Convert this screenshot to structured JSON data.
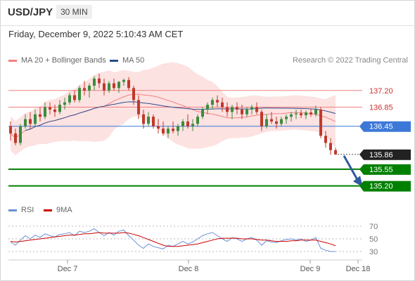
{
  "header": {
    "symbol": "USD/JPY",
    "timeframe": "30 MIN"
  },
  "datetime": "Friday, December 9, 2022 5:10:43 AM CET",
  "legend": {
    "ma20": "MA 20 + Bollinger Bands",
    "ma50": "MA 50",
    "copyright": "Research © 2022 Trading Central"
  },
  "rsi_legend": {
    "rsi": "RSI",
    "ma": "9MA"
  },
  "colors": {
    "ma20": "#f08080",
    "ma50": "#2b4c8c",
    "bollinger_fill": "#fde2e2",
    "candle_up": "#3c8c3c",
    "candle_down": "#c0392b",
    "resistance": "#f08080",
    "pivot": "#3c78d8",
    "support": "#008000",
    "last_price": "#222222",
    "arrow": "#2f5a9e",
    "rsi": "#6a8fd6",
    "rsi_ma": "#cc0000"
  },
  "chart_data": [
    {
      "type": "candlestick",
      "title": "USD/JPY",
      "timeframe": "30 MIN",
      "x_ticks": [
        "Dec 7",
        "Dec 8",
        "Dec 9",
        "Dec 18"
      ],
      "ylim": [
        134.9,
        137.55
      ],
      "series": [
        {
          "name": "MA 20 + Bollinger Bands"
        },
        {
          "name": "MA 50"
        }
      ],
      "ohlc": [
        [
          136.45,
          136.55,
          136.15,
          136.3
        ],
        [
          136.3,
          136.4,
          136.05,
          136.1
        ],
        [
          136.1,
          136.5,
          136.05,
          136.45
        ],
        [
          136.45,
          136.7,
          136.4,
          136.6
        ],
        [
          136.6,
          136.75,
          136.4,
          136.5
        ],
        [
          136.5,
          136.8,
          136.45,
          136.7
        ],
        [
          136.7,
          136.85,
          136.55,
          136.65
        ],
        [
          136.65,
          136.95,
          136.6,
          136.85
        ],
        [
          136.85,
          136.95,
          136.7,
          136.8
        ],
        [
          136.8,
          136.9,
          136.65,
          136.75
        ],
        [
          136.75,
          137.0,
          136.7,
          136.9
        ],
        [
          136.9,
          137.05,
          136.8,
          136.95
        ],
        [
          136.95,
          137.15,
          136.9,
          137.1
        ],
        [
          137.1,
          137.2,
          136.95,
          137.0
        ],
        [
          137.0,
          137.3,
          136.95,
          137.25
        ],
        [
          137.25,
          137.4,
          137.1,
          137.2
        ],
        [
          137.2,
          137.35,
          137.05,
          137.3
        ],
        [
          137.3,
          137.5,
          137.2,
          137.45
        ],
        [
          137.45,
          137.55,
          137.25,
          137.35
        ],
        [
          137.35,
          137.45,
          137.1,
          137.2
        ],
        [
          137.2,
          137.4,
          137.15,
          137.35
        ],
        [
          137.35,
          137.45,
          137.2,
          137.25
        ],
        [
          137.25,
          137.4,
          137.15,
          137.38
        ],
        [
          137.38,
          137.45,
          137.3,
          137.42
        ],
        [
          137.42,
          137.48,
          137.2,
          137.25
        ],
        [
          137.25,
          137.3,
          136.9,
          137.0
        ],
        [
          137.0,
          137.1,
          136.6,
          136.7
        ],
        [
          136.7,
          136.8,
          136.4,
          136.5
        ],
        [
          136.5,
          136.75,
          136.45,
          136.65
        ],
        [
          136.65,
          136.7,
          136.4,
          136.45
        ],
        [
          136.45,
          136.6,
          136.3,
          136.4
        ],
        [
          136.4,
          136.55,
          136.25,
          136.3
        ],
        [
          136.3,
          136.45,
          136.2,
          136.4
        ],
        [
          136.4,
          136.55,
          136.3,
          136.35
        ],
        [
          136.35,
          136.5,
          136.25,
          136.45
        ],
        [
          136.45,
          136.6,
          136.35,
          136.55
        ],
        [
          136.55,
          136.7,
          136.4,
          136.45
        ],
        [
          136.45,
          136.6,
          136.35,
          136.5
        ],
        [
          136.5,
          136.7,
          136.45,
          136.65
        ],
        [
          136.65,
          136.85,
          136.6,
          136.8
        ],
        [
          136.8,
          136.95,
          136.7,
          136.9
        ],
        [
          136.9,
          137.05,
          136.8,
          137.0
        ],
        [
          137.0,
          137.1,
          136.85,
          136.95
        ],
        [
          136.95,
          137.05,
          136.75,
          136.85
        ],
        [
          136.85,
          136.95,
          136.65,
          136.75
        ],
        [
          136.75,
          136.9,
          136.6,
          136.85
        ],
        [
          136.85,
          136.95,
          136.7,
          136.8
        ],
        [
          136.8,
          136.9,
          136.6,
          136.7
        ],
        [
          136.7,
          136.85,
          136.65,
          136.8
        ],
        [
          136.8,
          136.9,
          136.7,
          136.85
        ],
        [
          136.85,
          136.95,
          136.7,
          136.75
        ],
        [
          136.75,
          136.8,
          136.35,
          136.45
        ],
        [
          136.45,
          136.7,
          136.4,
          136.6
        ],
        [
          136.6,
          136.75,
          136.5,
          136.55
        ],
        [
          136.55,
          136.65,
          136.4,
          136.5
        ],
        [
          136.5,
          136.65,
          136.45,
          136.6
        ],
        [
          136.6,
          136.7,
          136.5,
          136.65
        ],
        [
          136.65,
          136.75,
          136.55,
          136.7
        ],
        [
          136.7,
          136.8,
          136.6,
          136.72
        ],
        [
          136.72,
          136.8,
          136.62,
          136.68
        ],
        [
          136.68,
          136.78,
          136.6,
          136.74
        ],
        [
          136.74,
          136.82,
          136.65,
          136.7
        ],
        [
          136.7,
          136.88,
          136.65,
          136.8
        ],
        [
          136.8,
          136.85,
          136.2,
          136.25
        ],
        [
          136.25,
          136.35,
          136.0,
          136.1
        ],
        [
          136.1,
          136.2,
          135.85,
          135.95
        ],
        [
          135.95,
          136.0,
          135.85,
          135.86
        ]
      ],
      "levels": [
        {
          "label": "137.20",
          "value": 137.2,
          "kind": "resistance"
        },
        {
          "label": "136.85",
          "value": 136.85,
          "kind": "resistance"
        },
        {
          "label": "136.45",
          "value": 136.45,
          "kind": "pivot"
        },
        {
          "label": "135.86",
          "value": 135.86,
          "kind": "last"
        },
        {
          "label": "135.55",
          "value": 135.55,
          "kind": "support"
        },
        {
          "label": "135.20",
          "value": 135.2,
          "kind": "support"
        }
      ]
    },
    {
      "type": "line",
      "title": "RSI",
      "x_ticks": [
        "Dec 7",
        "Dec 8",
        "Dec 9",
        "Dec 18"
      ],
      "y_ticks": [
        70,
        50,
        30
      ],
      "ylim": [
        20,
        80
      ],
      "series": [
        {
          "name": "RSI",
          "values": [
            45,
            40,
            48,
            55,
            50,
            56,
            52,
            58,
            55,
            53,
            57,
            58,
            60,
            55,
            62,
            60,
            62,
            66,
            60,
            55,
            60,
            56,
            62,
            64,
            55,
            48,
            40,
            35,
            42,
            38,
            36,
            34,
            40,
            38,
            42,
            46,
            42,
            45,
            50,
            55,
            58,
            60,
            55,
            50,
            46,
            52,
            50,
            46,
            50,
            52,
            48,
            40,
            47,
            45,
            44,
            47,
            49,
            50,
            48,
            50,
            46,
            48,
            52,
            35,
            32,
            30,
            30
          ]
        },
        {
          "name": "9MA",
          "values": [
            46,
            45,
            46,
            47,
            48,
            49,
            50,
            51,
            52,
            53,
            54,
            55,
            56,
            56,
            57,
            58,
            58,
            59,
            60,
            59,
            59,
            59,
            59,
            60,
            59,
            57,
            55,
            52,
            49,
            46,
            43,
            40,
            38,
            38,
            38,
            39,
            40,
            41,
            42,
            44,
            46,
            48,
            50,
            51,
            51,
            51,
            51,
            50,
            50,
            50,
            49,
            48,
            48,
            47,
            46,
            46,
            46,
            47,
            47,
            48,
            48,
            48,
            48,
            46,
            44,
            42,
            39
          ]
        }
      ]
    }
  ]
}
